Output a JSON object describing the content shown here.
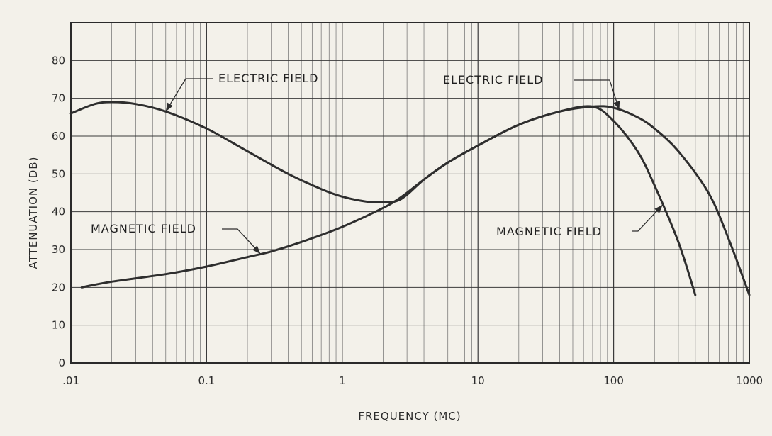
{
  "chart_data": {
    "type": "line",
    "title": "",
    "xlabel": "FREQUENCY (MC)",
    "ylabel": "ATTENUATION (DB)",
    "x_scale": "log",
    "xlim": [
      0.01,
      1000
    ],
    "ylim": [
      0,
      90
    ],
    "grid": true,
    "x_ticks": [
      ".01",
      "0.1",
      "1",
      "10",
      "100",
      "1000"
    ],
    "y_ticks": [
      "0",
      "10",
      "20",
      "30",
      "40",
      "50",
      "60",
      "70",
      "80"
    ],
    "series": [
      {
        "name": "ELECTRIC FIELD",
        "x": [
          0.01,
          0.015,
          0.02,
          0.03,
          0.05,
          0.1,
          0.2,
          0.4,
          0.7,
          1.0,
          1.5,
          2.0,
          2.5,
          3.0,
          4.0,
          6.0,
          10,
          20,
          40,
          70,
          100,
          150,
          200,
          300,
          500,
          700,
          1000
        ],
        "y": [
          66,
          68.5,
          69,
          68.5,
          66.5,
          62,
          56,
          50,
          46,
          44,
          42.7,
          42.5,
          42.8,
          44.5,
          48.5,
          53,
          57.5,
          63,
          66.5,
          67.8,
          67.5,
          65,
          62,
          56,
          45,
          33,
          18
        ]
      },
      {
        "name": "MAGNETIC FIELD",
        "x": [
          0.012,
          0.02,
          0.05,
          0.1,
          0.2,
          0.3,
          0.5,
          1.0,
          2.0,
          2.5,
          3.0,
          4.0,
          6.0,
          10,
          20,
          40,
          70,
          100,
          150,
          200,
          300,
          400
        ],
        "y": [
          20,
          21.5,
          23.5,
          25.5,
          28,
          29.5,
          32,
          36,
          41,
          43,
          45,
          48.5,
          53,
          57.5,
          63,
          66.5,
          67.8,
          64,
          56,
          47,
          32,
          18
        ]
      }
    ],
    "annotations": [
      {
        "text": "ELECTRIC FIELD",
        "series": "ELECTRIC FIELD",
        "near_x": 0.05
      },
      {
        "text": "ELECTRIC FIELD",
        "series": "ELECTRIC FIELD",
        "near_x": 110
      },
      {
        "text": "MAGNETIC FIELD",
        "series": "MAGNETIC FIELD",
        "near_x": 0.25
      },
      {
        "text": "MAGNETIC FIELD",
        "series": "MAGNETIC FIELD",
        "near_x": 230
      }
    ]
  }
}
